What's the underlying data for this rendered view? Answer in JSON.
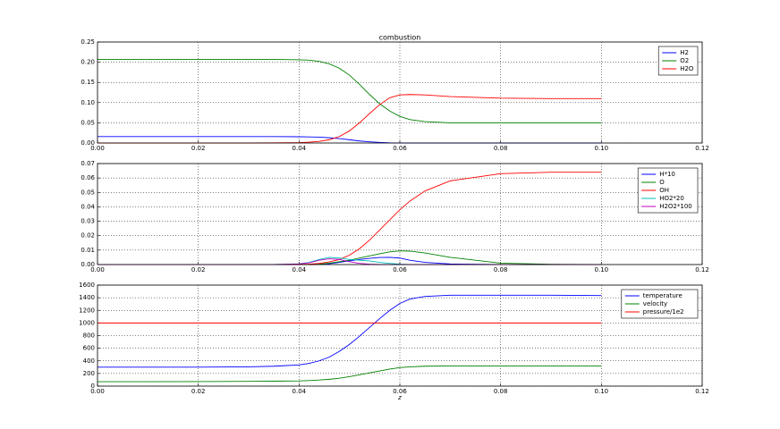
{
  "chart_data": [
    {
      "type": "line",
      "title": "combustion",
      "grid": true,
      "legend": "upper right",
      "x": [
        0,
        0.01,
        0.02,
        0.03,
        0.035,
        0.04,
        0.042,
        0.044,
        0.046,
        0.048,
        0.05,
        0.052,
        0.054,
        0.056,
        0.058,
        0.06,
        0.062,
        0.065,
        0.07,
        0.08,
        0.09,
        0.1
      ],
      "xlim": [
        0,
        0.12
      ],
      "xticks": [
        {
          "value": 0,
          "label": "0.00"
        },
        {
          "value": 0.02,
          "label": "0.02"
        },
        {
          "value": 0.04,
          "label": "0.04"
        },
        {
          "value": 0.06,
          "label": "0.06"
        },
        {
          "value": 0.08,
          "label": "0.08"
        },
        {
          "value": 0.1,
          "label": "0.10"
        },
        {
          "value": 0.12,
          "label": "0.12"
        }
      ],
      "ylim": [
        0,
        0.25
      ],
      "yticks": [
        {
          "value": 0,
          "label": "0.00"
        },
        {
          "value": 0.05,
          "label": "0.05"
        },
        {
          "value": 0.1,
          "label": "0.10"
        },
        {
          "value": 0.15,
          "label": "0.15"
        },
        {
          "value": 0.2,
          "label": "0.20"
        },
        {
          "value": 0.25,
          "label": "0.25"
        }
      ],
      "series": [
        {
          "name": "H2",
          "color": "#0000ff",
          "values": [
            0.016,
            0.016,
            0.016,
            0.016,
            0.0158,
            0.0155,
            0.015,
            0.0145,
            0.013,
            0.011,
            0.008,
            0.005,
            0.003,
            0.0015,
            0.0005,
            0.0001,
            0,
            0,
            0,
            0,
            0,
            0
          ]
        },
        {
          "name": "O2",
          "color": "#008000",
          "values": [
            0.207,
            0.207,
            0.207,
            0.207,
            0.207,
            0.206,
            0.205,
            0.202,
            0.196,
            0.185,
            0.168,
            0.145,
            0.12,
            0.097,
            0.079,
            0.066,
            0.058,
            0.053,
            0.05,
            0.05,
            0.05,
            0.05
          ]
        },
        {
          "name": "H2O",
          "color": "#ff0000",
          "values": [
            0,
            0,
            0,
            0,
            0.0005,
            0.001,
            0.002,
            0.004,
            0.008,
            0.016,
            0.03,
            0.05,
            0.073,
            0.095,
            0.112,
            0.119,
            0.12,
            0.119,
            0.115,
            0.111,
            0.11,
            0.11
          ]
        }
      ]
    },
    {
      "type": "line",
      "grid": true,
      "legend": "upper right",
      "x": [
        0,
        0.01,
        0.02,
        0.03,
        0.035,
        0.04,
        0.042,
        0.044,
        0.046,
        0.048,
        0.05,
        0.052,
        0.054,
        0.056,
        0.058,
        0.06,
        0.062,
        0.065,
        0.07,
        0.08,
        0.09,
        0.1
      ],
      "xlim": [
        0,
        0.12
      ],
      "xticks": [
        {
          "value": 0,
          "label": "0.00"
        },
        {
          "value": 0.02,
          "label": "0.02"
        },
        {
          "value": 0.04,
          "label": "0.04"
        },
        {
          "value": 0.06,
          "label": "0.06"
        },
        {
          "value": 0.08,
          "label": "0.08"
        },
        {
          "value": 0.1,
          "label": "0.10"
        },
        {
          "value": 0.12,
          "label": "0.12"
        }
      ],
      "ylim": [
        0,
        0.07
      ],
      "yticks": [
        {
          "value": 0,
          "label": "0.00"
        },
        {
          "value": 0.01,
          "label": "0.01"
        },
        {
          "value": 0.02,
          "label": "0.02"
        },
        {
          "value": 0.03,
          "label": "0.03"
        },
        {
          "value": 0.04,
          "label": "0.04"
        },
        {
          "value": 0.05,
          "label": "0.05"
        },
        {
          "value": 0.06,
          "label": "0.06"
        },
        {
          "value": 0.07,
          "label": "0.07"
        }
      ],
      "series": [
        {
          "name": "H*10",
          "color": "#0000ff",
          "values": [
            0,
            0,
            0,
            0,
            0,
            0,
            0,
            0.0002,
            0.0006,
            0.0015,
            0.0025,
            0.0035,
            0.0043,
            0.0049,
            0.005,
            0.0045,
            0.003,
            0.0015,
            0.0004,
            0,
            0,
            0
          ]
        },
        {
          "name": "O",
          "color": "#008000",
          "values": [
            0,
            0,
            0,
            0,
            0,
            0,
            0,
            0.0003,
            0.001,
            0.002,
            0.003,
            0.0045,
            0.006,
            0.0075,
            0.0088,
            0.0095,
            0.0093,
            0.008,
            0.005,
            0.001,
            0.0002,
            0
          ]
        },
        {
          "name": "OH",
          "color": "#ff0000",
          "values": [
            0,
            0,
            0,
            0,
            0,
            0,
            0.0003,
            0.0008,
            0.0018,
            0.0035,
            0.0065,
            0.011,
            0.017,
            0.024,
            0.031,
            0.038,
            0.044,
            0.051,
            0.058,
            0.063,
            0.064,
            0.064
          ]
        },
        {
          "name": "HO2*20",
          "color": "#00bfbf",
          "values": [
            0,
            0,
            0,
            0,
            0,
            0.0005,
            0.0015,
            0.0035,
            0.005,
            0.0045,
            0.0035,
            0.003,
            0.0025,
            0.0015,
            0.0008,
            0.0003,
            0,
            0,
            0,
            0,
            0,
            0
          ]
        },
        {
          "name": "H2O2*100",
          "color": "#bf00bf",
          "values": [
            0,
            0,
            0,
            0,
            0,
            0.0004,
            0.0012,
            0.003,
            0.004,
            0.0035,
            0.002,
            0.0008,
            0.0003,
            0,
            0,
            0,
            0,
            0,
            0,
            0,
            0,
            0
          ]
        }
      ]
    },
    {
      "type": "line",
      "grid": true,
      "legend": "upper right",
      "xlabel": "z",
      "x": [
        0,
        0.01,
        0.02,
        0.03,
        0.035,
        0.04,
        0.042,
        0.044,
        0.046,
        0.048,
        0.05,
        0.052,
        0.054,
        0.056,
        0.058,
        0.06,
        0.062,
        0.065,
        0.07,
        0.08,
        0.09,
        0.1
      ],
      "xlim": [
        0,
        0.12
      ],
      "xticks": [
        {
          "value": 0,
          "label": "0.00"
        },
        {
          "value": 0.02,
          "label": "0.02"
        },
        {
          "value": 0.04,
          "label": "0.04"
        },
        {
          "value": 0.06,
          "label": "0.06"
        },
        {
          "value": 0.08,
          "label": "0.08"
        },
        {
          "value": 0.1,
          "label": "0.10"
        },
        {
          "value": 0.12,
          "label": "0.12"
        }
      ],
      "ylim": [
        0,
        1600
      ],
      "yticks": [
        0,
        200,
        400,
        600,
        800,
        1000,
        1200,
        1400,
        1600
      ],
      "series": [
        {
          "name": "temperature",
          "color": "#0000ff",
          "values": [
            300,
            300,
            300,
            305,
            315,
            335,
            360,
            400,
            460,
            550,
            660,
            790,
            930,
            1070,
            1200,
            1310,
            1380,
            1420,
            1440,
            1440,
            1440,
            1435
          ]
        },
        {
          "name": "velocity",
          "color": "#008000",
          "values": [
            70,
            70,
            72,
            75,
            78,
            82,
            88,
            96,
            108,
            125,
            150,
            180,
            210,
            240,
            270,
            293,
            305,
            315,
            320,
            320,
            320,
            320
          ]
        },
        {
          "name": "pressure/1e2",
          "color": "#ff0000",
          "values": [
            1000,
            1000,
            1000,
            1000,
            1000,
            1000,
            1000,
            1000,
            1000,
            1000,
            1000,
            1000,
            1000,
            1000,
            1000,
            1000,
            1000,
            1000,
            1000,
            1000,
            1000,
            1000
          ]
        }
      ]
    }
  ]
}
